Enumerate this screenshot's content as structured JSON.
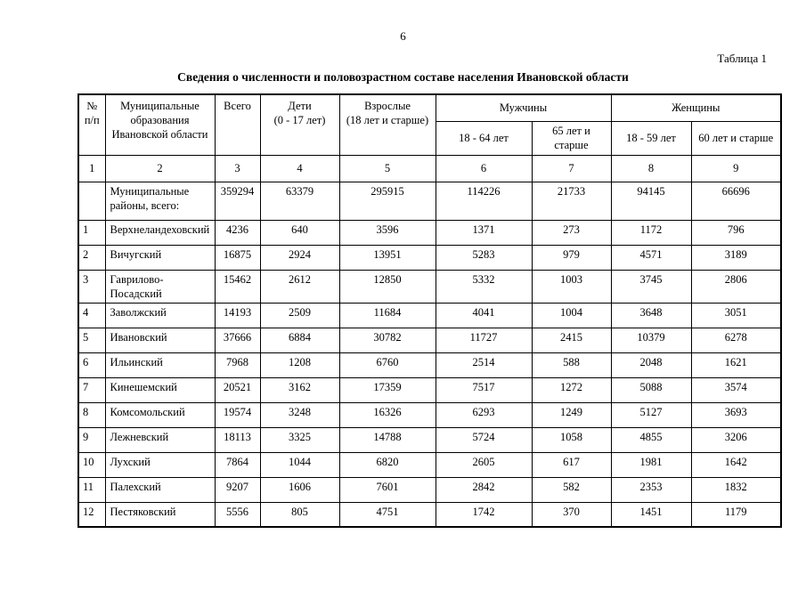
{
  "page": {
    "page_number": "6",
    "table_label": "Таблица 1",
    "title": "Сведения о численности и половозрастном составе населения Ивановской области"
  },
  "table": {
    "headers": {
      "num": {
        "line1": "№",
        "line2": "п/п"
      },
      "name": "Муниципальные образования Ивановской области",
      "total": "Всего",
      "children": {
        "line1": "Дети",
        "line2": "(0 - 17 лет)"
      },
      "adults": {
        "line1": "Взрослые",
        "line2": "(18 лет и старше)"
      },
      "men": {
        "group": "Мужчины",
        "sub1": "18 - 64 лет",
        "sub2_line1": "65 лет и",
        "sub2_line2": "старше"
      },
      "women": {
        "group": "Женщины",
        "sub1": "18 - 59 лет",
        "sub2": "60 лет и старше"
      }
    },
    "column_numbers": [
      "1",
      "2",
      "3",
      "4",
      "5",
      "6",
      "7",
      "8",
      "9"
    ],
    "rows": [
      {
        "num": "",
        "name": "Муниципальные районы, всего:",
        "values": [
          "359294",
          "63379",
          "295915",
          "114226",
          "21733",
          "94145",
          "66696"
        ],
        "totals": true
      },
      {
        "num": "1",
        "name": "Верхнеландеховский",
        "values": [
          "4236",
          "640",
          "3596",
          "1371",
          "273",
          "1172",
          "796"
        ]
      },
      {
        "num": "2",
        "name": "Вичугский",
        "values": [
          "16875",
          "2924",
          "13951",
          "5283",
          "979",
          "4571",
          "3189"
        ]
      },
      {
        "num": "3",
        "name": "Гаврилово-Посадский",
        "values": [
          "15462",
          "2612",
          "12850",
          "5332",
          "1003",
          "3745",
          "2806"
        ]
      },
      {
        "num": "4",
        "name": "Заволжский",
        "values": [
          "14193",
          "2509",
          "11684",
          "4041",
          "1004",
          "3648",
          "3051"
        ]
      },
      {
        "num": "5",
        "name": "Ивановский",
        "values": [
          "37666",
          "6884",
          "30782",
          "11727",
          "2415",
          "10379",
          "6278"
        ]
      },
      {
        "num": "6",
        "name": "Ильинский",
        "values": [
          "7968",
          "1208",
          "6760",
          "2514",
          "588",
          "2048",
          "1621"
        ]
      },
      {
        "num": "7",
        "name": "Кинешемский",
        "values": [
          "20521",
          "3162",
          "17359",
          "7517",
          "1272",
          "5088",
          "3574"
        ]
      },
      {
        "num": "8",
        "name": "Комсомольский",
        "values": [
          "19574",
          "3248",
          "16326",
          "6293",
          "1249",
          "5127",
          "3693"
        ]
      },
      {
        "num": "9",
        "name": "Лежневский",
        "values": [
          "18113",
          "3325",
          "14788",
          "5724",
          "1058",
          "4855",
          "3206"
        ]
      },
      {
        "num": "10",
        "name": "Лухский",
        "values": [
          "7864",
          "1044",
          "6820",
          "2605",
          "617",
          "1981",
          "1642"
        ]
      },
      {
        "num": "11",
        "name": "Палехский",
        "values": [
          "9207",
          "1606",
          "7601",
          "2842",
          "582",
          "2353",
          "1832"
        ]
      },
      {
        "num": "12",
        "name": "Пестяковский",
        "values": [
          "5556",
          "805",
          "4751",
          "1742",
          "370",
          "1451",
          "1179"
        ]
      }
    ]
  }
}
